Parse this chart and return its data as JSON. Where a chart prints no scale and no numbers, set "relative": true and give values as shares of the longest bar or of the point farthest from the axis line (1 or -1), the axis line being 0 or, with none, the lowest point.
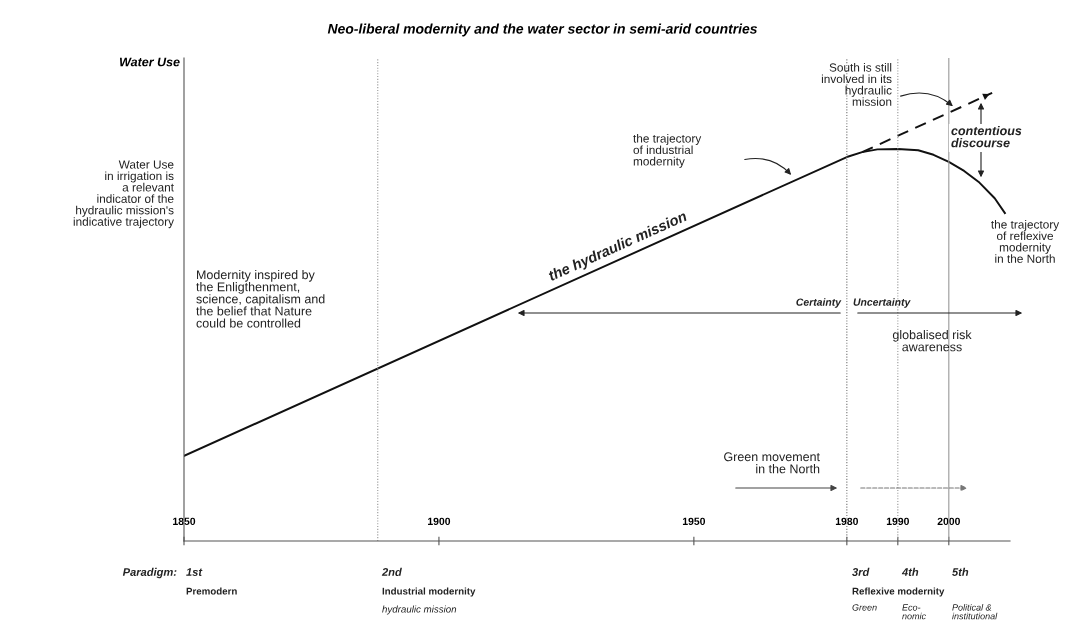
{
  "chart_data": {
    "type": "line",
    "title": "Neo-liberal modernity and the water sector in semi-arid countries",
    "ylabel": "Water Use",
    "relative": true,
    "xlim": [
      1850,
      2012
    ],
    "xticks": [
      1850,
      1900,
      1950,
      1980,
      1990,
      2000
    ],
    "grid": false,
    "legend": false,
    "series": [
      {
        "color": "#111111",
        "line_style": "solid",
        "x": [
          1850,
          1980,
          1983,
          1986,
          1990,
          1994,
          1997,
          2000,
          2003,
          2006,
          2009,
          2011
        ],
        "values": [
          0.19,
          0.857,
          0.868,
          0.874,
          0.875,
          0.872,
          0.862,
          0.846,
          0.826,
          0.8,
          0.765,
          0.732
        ]
      },
      {
        "color": "#111111",
        "line_style": "dashed",
        "x": [
          1983,
          2008.5
        ],
        "values": [
          0.868,
          1.0
        ]
      }
    ],
    "ref_lines": [
      {
        "axis": "x",
        "value": 1888,
        "color": "#999999",
        "line_style": "dotted"
      },
      {
        "axis": "x",
        "value": 1980,
        "color": "#777777",
        "line_style": "dotted"
      },
      {
        "axis": "x",
        "value": 1990,
        "color": "#999999",
        "line_style": "dotted"
      },
      {
        "axis": "x",
        "value": 2000,
        "color": "#999999",
        "line_style": "solid"
      }
    ],
    "annotations": [
      "Water Use\nin irrigation is\na relevant\nindicator of the\nhydraulic mission's\nindicative trajectory",
      "Modernity inspired by\nthe Enligthenment,\nscience, capitalism and\nthe belief that Nature\ncould be controlled",
      "the hydraulic mission",
      "the trajectory\nof industrial\nmodernity",
      "South is still\ninvolved in its\nhydraulic\nmission",
      "contentious\ndiscourse",
      "the trajectory\nof reflexive\nmodernity\nin the North",
      "Certainty",
      "Uncertainty",
      "globalised risk\nawareness",
      "Green movement\nin the North",
      "Paradigm:",
      "1st",
      "Premodern",
      "2nd",
      "Industrial modernity",
      "hydraulic mission",
      "3rd",
      "4th",
      "5th",
      "Reflexive modernity",
      "Green",
      "Eco-\nnomic",
      "Political &\ninstitutional"
    ]
  }
}
